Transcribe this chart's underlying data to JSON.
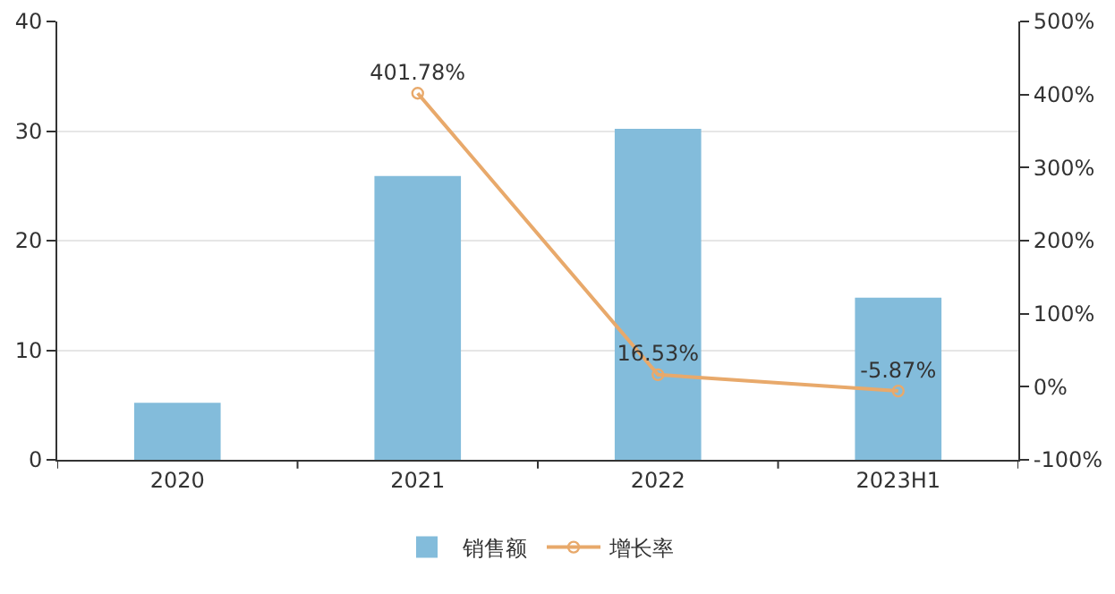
{
  "chart_data": {
    "type": "bar",
    "categories": [
      "2020",
      "2021",
      "2022",
      "2023H1"
    ],
    "series": [
      {
        "name": "销售额",
        "color": "#83bcdb",
        "values": [
          5.2,
          25.9,
          30.2,
          14.8
        ]
      },
      {
        "name": "增长率",
        "type": "line",
        "axis": "y2",
        "color": "#e8a96b",
        "marker": "circle",
        "values": [
          null,
          401.78,
          16.53,
          -5.87
        ],
        "value_labels": [
          null,
          "401.78%",
          "16.53%",
          "-5.87%"
        ]
      }
    ],
    "ylim": [
      0,
      40
    ],
    "yticks": [
      0,
      10,
      20,
      30,
      40
    ],
    "y2lim": [
      -100,
      500
    ],
    "y2ticks": [
      {
        "value": -100,
        "label": "-100%"
      },
      {
        "value": 0,
        "label": "0%"
      },
      {
        "value": 100,
        "label": "100%"
      },
      {
        "value": 200,
        "label": "200%"
      },
      {
        "value": 300,
        "label": "300%"
      },
      {
        "value": 400,
        "label": "400%"
      },
      {
        "value": 500,
        "label": "500%"
      }
    ],
    "grid": "y",
    "legend": "bottom"
  }
}
